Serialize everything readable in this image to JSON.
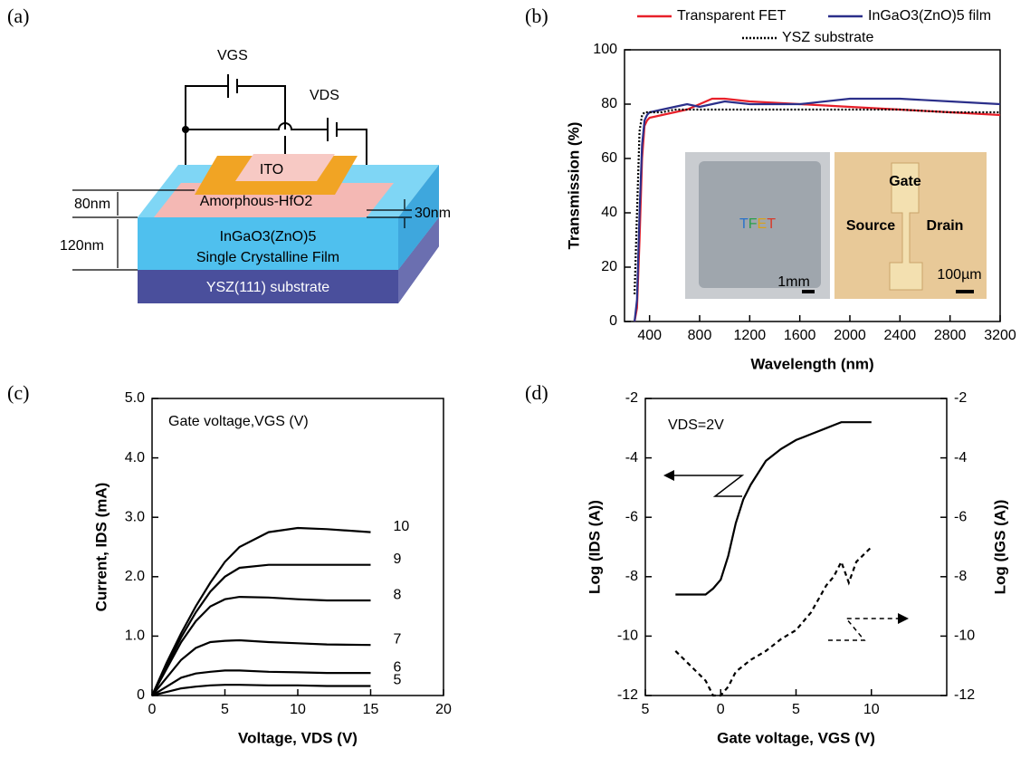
{
  "diagram": {
    "panel_label": "(a)",
    "vgs": "VGS",
    "vds": "VDS",
    "ito": "ITO",
    "hfo2": "Amorphous-HfO2",
    "t80": "80nm",
    "t120": "120nm",
    "t30": "30nm",
    "film1": "InGaO3(ZnO)5",
    "film2": "Single Crystalline Film",
    "substrate": "YSZ(111) substrate"
  },
  "chart_data": [
    {
      "type": "line",
      "panel_label": "(b)",
      "xlabel": "Wavelength (nm)",
      "ylabel": "Transmission (%)",
      "xlim": [
        200,
        3200
      ],
      "xticks": [
        400,
        800,
        1200,
        1600,
        2000,
        2400,
        2800,
        3200
      ],
      "ylim": [
        0,
        100
      ],
      "yticks": [
        0,
        20,
        40,
        60,
        80,
        100
      ],
      "grid": false,
      "legend": "top",
      "x": [
        280,
        300,
        320,
        340,
        360,
        380,
        400,
        500,
        600,
        700,
        800,
        900,
        1000,
        1200,
        1600,
        2000,
        2400,
        2800,
        3200
      ],
      "series": [
        {
          "name": "Transparent FET",
          "color": "#e8202a",
          "dash": "solid",
          "values": [
            0,
            5,
            30,
            60,
            72,
            74,
            75,
            76,
            77,
            78,
            80,
            82,
            82,
            81,
            80,
            79,
            78,
            77,
            76
          ]
        },
        {
          "name": "InGaO3(ZnO)5 film",
          "color": "#2b2f8a",
          "dash": "solid",
          "values": [
            0,
            8,
            40,
            65,
            74,
            76,
            77,
            78,
            79,
            80,
            79,
            80,
            81,
            80,
            80,
            82,
            82,
            81,
            80
          ]
        },
        {
          "name": "YSZ substrate",
          "color": "#000000",
          "dash": "dotted",
          "values": [
            10,
            40,
            70,
            76,
            77,
            77,
            77,
            77,
            78,
            78,
            78,
            78,
            78,
            78,
            78,
            78,
            78,
            77,
            77
          ]
        }
      ],
      "annotations": [
        "TFET",
        "1mm",
        "Gate",
        "Source",
        "Drain",
        "100µm"
      ]
    },
    {
      "type": "line",
      "panel_label": "(c)",
      "xlabel": "Voltage, VDS (V)",
      "ylabel": "Current, IDS (mA)",
      "xlim": [
        0,
        20
      ],
      "xticks": [
        0,
        5,
        10,
        15,
        20
      ],
      "ylim": [
        0,
        5
      ],
      "yticks": [
        0,
        {
          "value": 1,
          "label": "1.0"
        },
        {
          "value": 2,
          "label": "2.0"
        },
        {
          "value": 3,
          "label": "3.0"
        },
        {
          "value": 4,
          "label": "4.0"
        },
        {
          "value": 5,
          "label": "5.0"
        }
      ],
      "grid": false,
      "legend": "line-end",
      "x": [
        0,
        1,
        2,
        3,
        4,
        5,
        6,
        8,
        10,
        12,
        15
      ],
      "series": [
        {
          "name": "10",
          "color": "#000000",
          "dash": "solid",
          "values": [
            0,
            0.55,
            1.05,
            1.5,
            1.9,
            2.25,
            2.5,
            2.75,
            2.82,
            2.8,
            2.75
          ]
        },
        {
          "name": "9",
          "color": "#000000",
          "dash": "solid",
          "values": [
            0,
            0.5,
            0.98,
            1.4,
            1.75,
            2.0,
            2.15,
            2.2,
            2.2,
            2.2,
            2.2
          ]
        },
        {
          "name": "8",
          "color": "#000000",
          "dash": "solid",
          "values": [
            0,
            0.45,
            0.9,
            1.25,
            1.5,
            1.62,
            1.66,
            1.65,
            1.62,
            1.6,
            1.6
          ]
        },
        {
          "name": "7",
          "color": "#000000",
          "dash": "solid",
          "values": [
            0,
            0.3,
            0.6,
            0.8,
            0.9,
            0.92,
            0.93,
            0.9,
            0.88,
            0.86,
            0.85
          ]
        },
        {
          "name": "6",
          "color": "#000000",
          "dash": "solid",
          "values": [
            0,
            0.15,
            0.3,
            0.37,
            0.4,
            0.42,
            0.42,
            0.4,
            0.39,
            0.38,
            0.38
          ]
        },
        {
          "name": "5",
          "color": "#000000",
          "dash": "solid",
          "values": [
            0,
            0.06,
            0.12,
            0.15,
            0.17,
            0.18,
            0.18,
            0.17,
            0.17,
            0.16,
            0.16
          ]
        }
      ],
      "annotations": [
        "Gate voltage,VGS (V)"
      ]
    },
    {
      "type": "line",
      "panel_label": "(d)",
      "xlabel": "Gate voltage, VGS (V)",
      "ylabel": "Log (IDS (A))",
      "y2label": "Log (IGS (A))",
      "xlim": [
        -5,
        15
      ],
      "xticks": [
        {
          "value": -5,
          "label": "5"
        },
        0,
        5,
        10
      ],
      "ylim": [
        -12,
        -2
      ],
      "yticks": [
        -12,
        -10,
        -8,
        -6,
        -4,
        -2
      ],
      "y2lim": [
        -12,
        -2
      ],
      "y2ticks": [
        -12,
        -10,
        -8,
        -6,
        -4,
        -2
      ],
      "grid": false,
      "x": [
        -3,
        -2,
        -1,
        -0.5,
        0,
        0.5,
        1,
        1.5,
        2,
        3,
        4,
        5,
        6,
        7,
        7.5,
        8,
        8.5,
        9,
        10
      ],
      "series": [
        {
          "color": "#000000",
          "dash": "solid",
          "values": [
            -8.6,
            -8.6,
            -8.6,
            -8.4,
            -8.1,
            -7.3,
            -6.2,
            -5.4,
            -4.9,
            -4.1,
            -3.7,
            -3.4,
            -3.2,
            -3.0,
            -2.9,
            -2.8,
            -2.8,
            -2.8,
            -2.8
          ]
        },
        {
          "color": "#000000",
          "dash": "dashed",
          "axis": "y2",
          "values": [
            -10.5,
            -11,
            -11.5,
            -12,
            -12,
            -11.7,
            -11.2,
            -11.0,
            -10.8,
            -10.5,
            -10.1,
            -9.8,
            -9.2,
            -8.3,
            -8.0,
            -7.5,
            -8.2,
            -7.5,
            -7
          ]
        }
      ],
      "annotations": [
        "VDS=2V"
      ]
    }
  ]
}
